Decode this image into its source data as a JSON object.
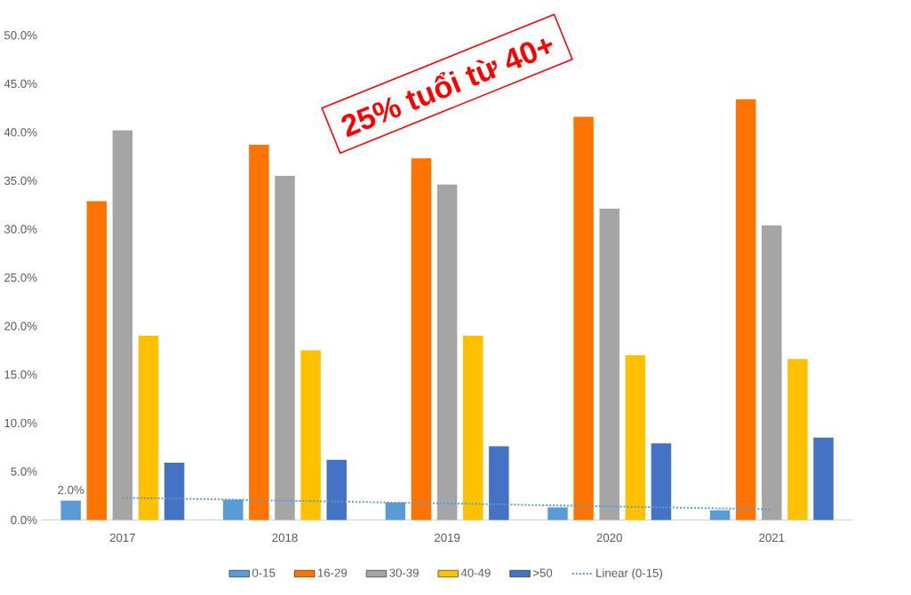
{
  "chart_data": {
    "type": "bar",
    "categories": [
      "2017",
      "2018",
      "2019",
      "2020",
      "2021"
    ],
    "series": [
      {
        "name": "0-15",
        "color": "#5b9bd5",
        "values": [
          2.0,
          2.1,
          1.8,
          1.3,
          1.0
        ],
        "value_labels": [
          "2.0%",
          null,
          null,
          null,
          null
        ]
      },
      {
        "name": "16-29",
        "color": "#ff7300",
        "values": [
          32.9,
          38.7,
          37.3,
          41.6,
          43.4
        ]
      },
      {
        "name": "30-39",
        "color": "#a5a5a5",
        "values": [
          40.2,
          35.5,
          34.6,
          32.1,
          30.4
        ]
      },
      {
        "name": "40-49",
        "color": "#ffc000",
        "values": [
          19.0,
          17.5,
          19.0,
          17.0,
          16.6
        ]
      },
      {
        "name": ">50",
        "color": "#4472c4",
        "values": [
          5.9,
          6.2,
          7.6,
          7.9,
          8.5
        ]
      },
      {
        "name": "Linear (0-15)",
        "type": "line",
        "color": "#5b9bd5",
        "line_style": "dotted",
        "values": [
          2.3,
          2.0,
          1.7,
          1.4,
          1.1
        ]
      }
    ],
    "ylim": [
      0,
      50
    ],
    "yticks": [
      {
        "value": 0,
        "label": "0.0%"
      },
      {
        "value": 5,
        "label": "5.0%"
      },
      {
        "value": 10,
        "label": "10.0%"
      },
      {
        "value": 15,
        "label": "15.0%"
      },
      {
        "value": 20,
        "label": "20.0%"
      },
      {
        "value": 25,
        "label": "25.0%"
      },
      {
        "value": 30,
        "label": "30.0%"
      },
      {
        "value": 35,
        "label": "35.0%"
      },
      {
        "value": 40,
        "label": "40.0%"
      },
      {
        "value": 45,
        "label": "45.0%"
      },
      {
        "value": 50,
        "label": "50.0%"
      }
    ],
    "annotations": [
      "25% tuổi từ 40+"
    ],
    "legend": "bottom",
    "grid": false
  }
}
